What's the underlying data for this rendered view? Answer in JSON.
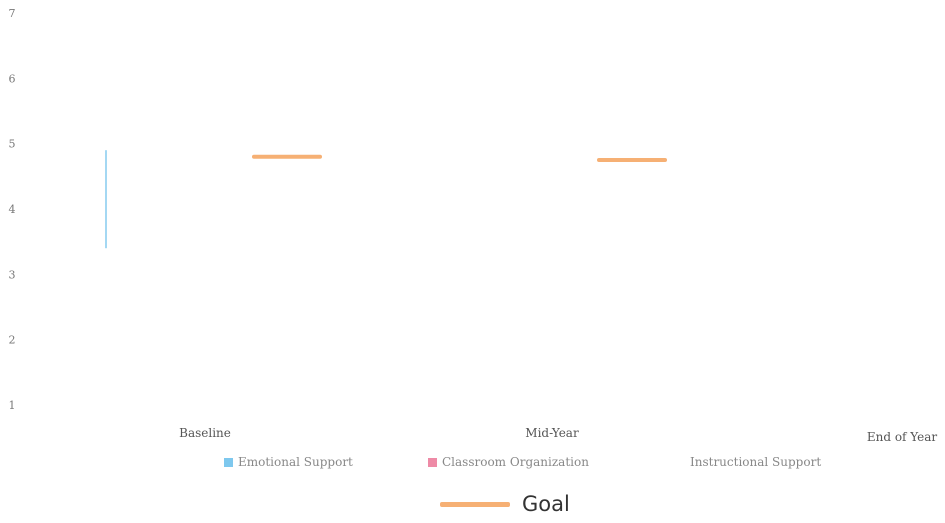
{
  "chart_data": {
    "type": "bar",
    "categories": [
      "Baseline",
      "Mid-Year",
      "End of Year"
    ],
    "series": [
      {
        "name": "Emotional Support",
        "color": "#7ec8ee",
        "values": [
          4.9,
          null,
          null
        ]
      },
      {
        "name": "Classroom Organization",
        "color": "#ee8aa6",
        "values": [
          null,
          null,
          null
        ]
      },
      {
        "name": "Instructional Support",
        "color": "#d4d4d4",
        "values": [
          null,
          null,
          null
        ]
      }
    ],
    "goal": {
      "name": "Goal",
      "color": "#f6b074",
      "values": [
        4.8,
        4.75,
        null
      ]
    },
    "y_ticks": [
      "1",
      "2",
      "3",
      "4",
      "5",
      "6",
      "7"
    ],
    "ylim": [
      1,
      7
    ],
    "legend_position": "bottom",
    "grid": false
  }
}
